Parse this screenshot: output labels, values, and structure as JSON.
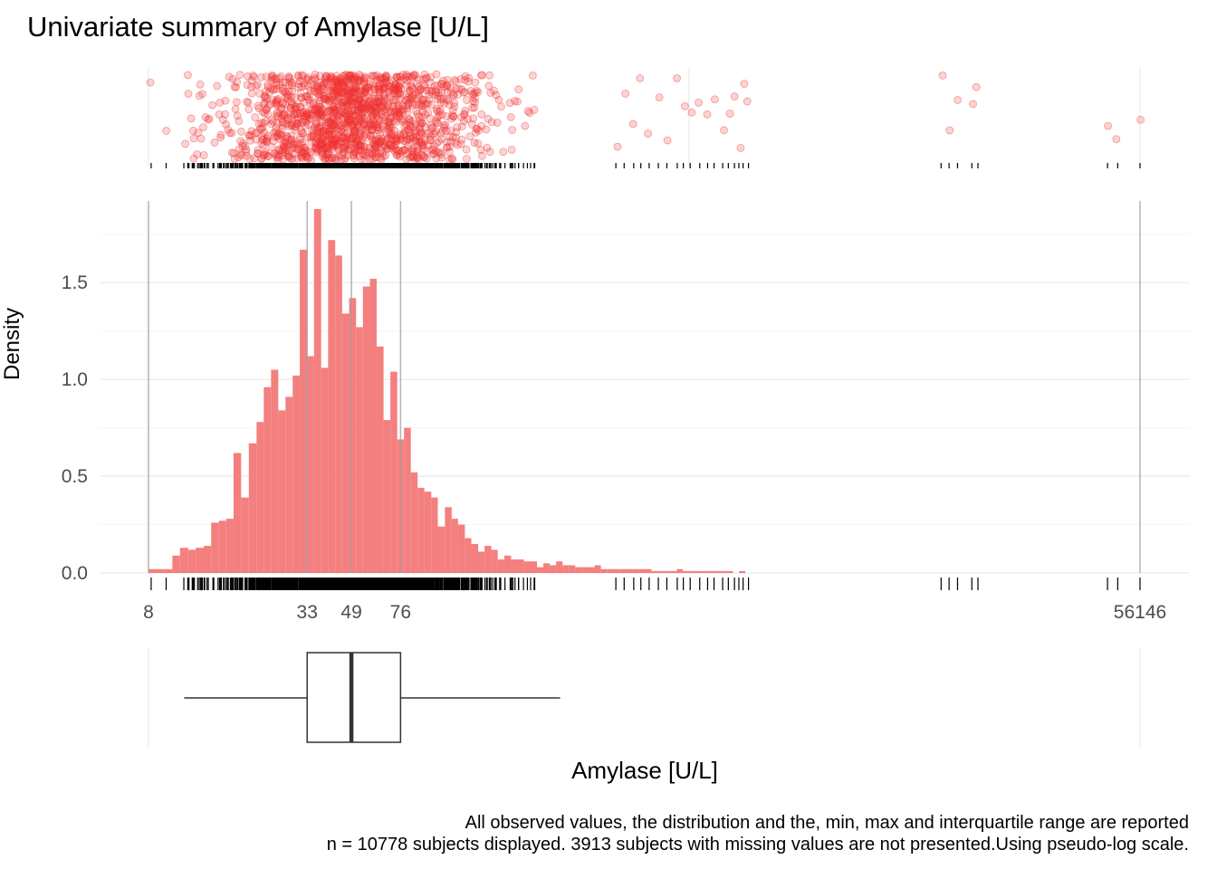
{
  "title": "Univariate summary of Amylase [U/L]",
  "caption": {
    "line1": "All observed values, the distribution and the, min, max and interquartile range are reported",
    "line2": "n = 10778 subjects displayed. 3913 subjects with missing values are not presented.Using pseudo-log scale."
  },
  "colors": {
    "bar": "#f47f7f",
    "point": "#f03030",
    "grid": "#ebebeb",
    "vline": "#a0a0a0"
  },
  "chart_data": [
    {
      "type": "scatter",
      "panel": "jittered observed values",
      "x_scale": "pseudo-log",
      "xlim": [
        8,
        56146
      ],
      "note": "one jittered point per observed value (n = 10778)"
    },
    {
      "type": "bar",
      "panel": "histogram",
      "title": "",
      "xlabel": "Amylase [U/L]",
      "ylabel": "Density",
      "x_scale": "pseudo-log",
      "xlim": [
        8,
        56146
      ],
      "ylim": [
        0,
        1.95
      ],
      "y_ticks": [
        0.0,
        0.5,
        1.0,
        1.5
      ],
      "y_tick_labels": [
        "0.0",
        "0.5",
        "1.0",
        "1.5"
      ],
      "x_tick_values": [
        8,
        33,
        49,
        76,
        56146
      ],
      "x_tick_labels": [
        "8",
        "33",
        "49",
        "76",
        "56146"
      ],
      "grid": true,
      "bin_edges": [
        8.0,
        8.6,
        9.2,
        9.9,
        10.6,
        11.4,
        12.2,
        13.1,
        14.0,
        15.0,
        16.0,
        17.1,
        18.3,
        19.6,
        21.0,
        22.4,
        23.9,
        25.5,
        27.2,
        29.0,
        30.9,
        33.0,
        35.1,
        37.4,
        39.8,
        42.4,
        45.1,
        48.0,
        51.1,
        54.3,
        57.8,
        61.4,
        65.3,
        69.4,
        73.8,
        78.4,
        83.3,
        88.5,
        94.0,
        100.0,
        106.0,
        113.0,
        120.0,
        127.0,
        135.0,
        143.0,
        152.0,
        161.0,
        171.0,
        181.0,
        192.0,
        204.0,
        216.0,
        229.0,
        242.0,
        257.0,
        272.0,
        288.0,
        305.0,
        323.0,
        342.0,
        362.0,
        383.0,
        406.0,
        430.0,
        455.0,
        482.0,
        510.0,
        540.0,
        571.0,
        604.0,
        639.0,
        676.0,
        715.0,
        757.0,
        801.0,
        847.0,
        896.0,
        947.0,
        1002.0,
        1059.0,
        1120.0,
        1184.0,
        1252.0,
        1323.0,
        1399.0,
        1479.0,
        1563.0,
        1652.0,
        1746.0
      ],
      "values": [
        0.02,
        0.02,
        0.02,
        0.09,
        0.13,
        0.12,
        0.13,
        0.14,
        0.26,
        0.27,
        0.28,
        0.62,
        0.39,
        0.67,
        0.78,
        0.96,
        1.05,
        0.84,
        0.91,
        1.02,
        1.67,
        1.12,
        1.88,
        1.06,
        1.72,
        1.64,
        1.34,
        1.42,
        1.27,
        1.48,
        1.52,
        1.17,
        0.79,
        1.04,
        0.69,
        0.75,
        0.52,
        0.44,
        0.42,
        0.39,
        0.24,
        0.34,
        0.28,
        0.25,
        0.18,
        0.15,
        0.11,
        0.14,
        0.12,
        0.07,
        0.09,
        0.07,
        0.07,
        0.06,
        0.06,
        0.03,
        0.05,
        0.04,
        0.06,
        0.04,
        0.04,
        0.03,
        0.03,
        0.03,
        0.04,
        0.02,
        0.02,
        0.02,
        0.02,
        0.02,
        0.02,
        0.02,
        0.02,
        0.01,
        0.01,
        0.01,
        0.01,
        0.02,
        0.01,
        0.01,
        0.01,
        0.01,
        0.01,
        0.01,
        0.01,
        0.01,
        0.0,
        0.01,
        0.0
      ],
      "vertical_lines": [
        8,
        33,
        49,
        76,
        56146
      ]
    },
    {
      "type": "box",
      "panel": "boxplot",
      "min": 8,
      "q1": 33,
      "median": 49,
      "q3": 76,
      "max": 56146,
      "whisker_low": 11,
      "whisker_high": 316
    }
  ]
}
